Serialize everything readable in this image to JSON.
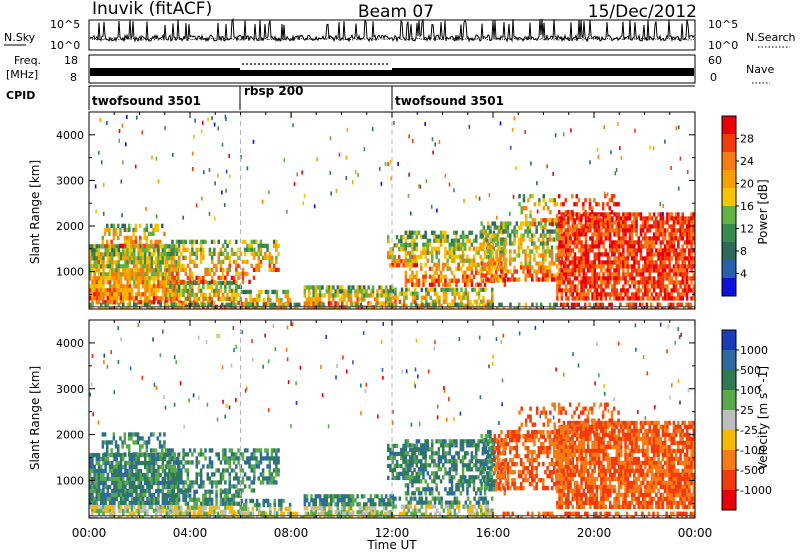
{
  "header": {
    "station": "Inuvik (fitACF)",
    "beam": "Beam 07",
    "date": "15/Dec/2012"
  },
  "summary_panels": {
    "nsky_label": "N.Sky",
    "nsearch_label": "N.Search",
    "nsky_ticks": [
      "10^5",
      "10^0"
    ],
    "nsearch_ticks": [
      "10^5",
      "10^0"
    ],
    "freq_label_1": "Freq.",
    "freq_label_2": "[MHz]",
    "freq_ticks": [
      "18",
      "8"
    ],
    "nave_label": "Nave",
    "nave_ticks": [
      "60",
      "0"
    ],
    "cpid_label": "CPID",
    "cpid_segments": [
      {
        "label": "twofsound 3501",
        "start_hour": 0,
        "end_hour": 6
      },
      {
        "label": "rbsp 200",
        "start_hour": 6,
        "end_hour": 12
      },
      {
        "label": "twofsound 3501",
        "start_hour": 12,
        "end_hour": 24
      }
    ]
  },
  "chart_data": [
    {
      "type": "heatmap",
      "title": "",
      "xlabel": "Time UT",
      "ylabel": "Slant Range [km]",
      "xlim": [
        0,
        24
      ],
      "ylim": [
        180,
        4500
      ],
      "x_tick_labels": [
        "00:00",
        "04:00",
        "08:00",
        "12:00",
        "16:00",
        "20:00",
        "00:00"
      ],
      "x_tick_hours": [
        0,
        4,
        8,
        12,
        16,
        20,
        24
      ],
      "y_tick_labels": [
        "1000",
        "2000",
        "3000",
        "4000"
      ],
      "y_tick_values": [
        1000,
        2000,
        3000,
        4000
      ],
      "colorbar": {
        "label": "Power [dB]",
        "tick_labels": [
          "28",
          "24",
          "20",
          "16",
          "12",
          "8",
          "4"
        ],
        "colors": [
          "#e8000b",
          "#f23a0a",
          "#f77b15",
          "#f7a000",
          "#f5c400",
          "#63b043",
          "#3a8a4d",
          "#2f6a58",
          "#2860a8",
          "#1010d8"
        ]
      },
      "mode_change_hours": [
        6,
        12
      ]
    },
    {
      "type": "heatmap",
      "title": "",
      "xlabel": "Time UT",
      "ylabel": "Slant Range [km]",
      "xlim": [
        0,
        24
      ],
      "ylim": [
        180,
        4500
      ],
      "x_tick_labels": [
        "00:00",
        "04:00",
        "08:00",
        "12:00",
        "16:00",
        "20:00",
        "00:00"
      ],
      "x_tick_hours": [
        0,
        4,
        8,
        12,
        16,
        20,
        24
      ],
      "y_tick_labels": [
        "1000",
        "2000",
        "3000",
        "4000"
      ],
      "y_tick_values": [
        1000,
        2000,
        3000,
        4000
      ],
      "colorbar": {
        "label": "Velocity [m s^-1]",
        "tick_labels": [
          "1000",
          "500",
          "100",
          "25",
          "-25",
          "-100",
          "-500",
          "-1000"
        ],
        "colors": [
          "#1a3cb8",
          "#2e6aa0",
          "#2f7a55",
          "#5aa84c",
          "#bdbdbd",
          "#f5b800",
          "#f77b15",
          "#f23a0a",
          "#e8000b"
        ]
      },
      "mode_change_hours": [
        6,
        12
      ]
    }
  ]
}
